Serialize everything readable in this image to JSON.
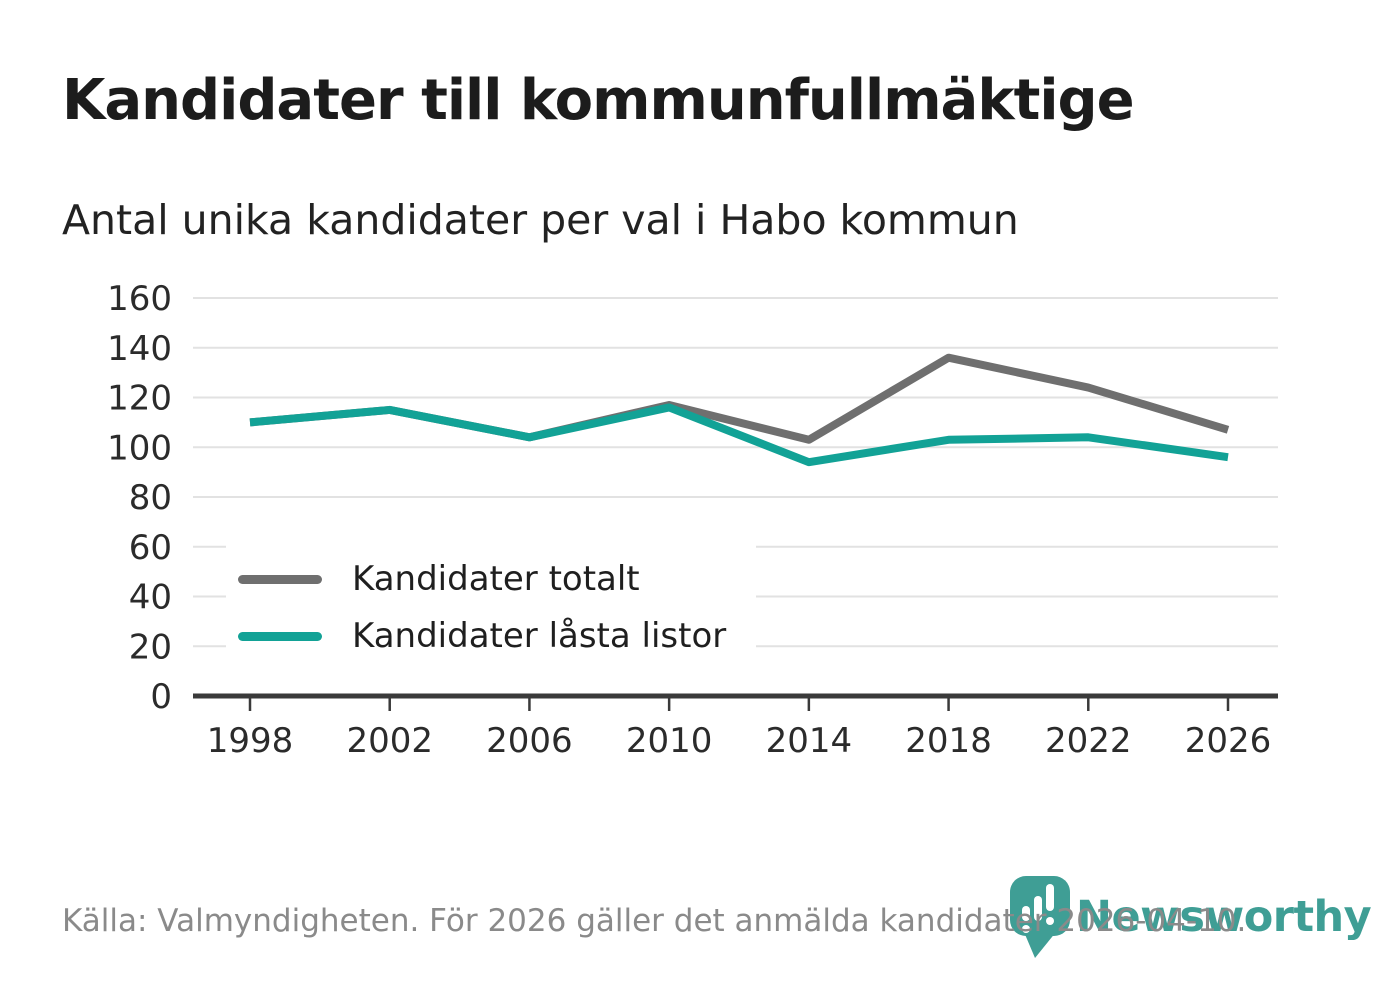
{
  "title": "Kandidater till kommunfullmäktige",
  "subtitle": "Antal unika kandidater per val i Habo kommun",
  "footer": {
    "source": "Källa: Valmyndigheten. För 2026 gäller det anmälda kandidater 2026-04-10.",
    "brand": "Newsworthy"
  },
  "colors": {
    "line_gray": "#6f6f6f",
    "line_teal": "#12a296",
    "logo_teal": "#3f9e95",
    "axis": "#3a3a3a",
    "grid": "#e2e2e2",
    "tick_label": "#2b2b2b"
  },
  "chart_data": {
    "type": "line",
    "title": "Kandidater till kommunfullmäktige",
    "subtitle": "Antal unika kandidater per val i Habo kommun",
    "categories": [
      "1998",
      "2002",
      "2006",
      "2010",
      "2014",
      "2018",
      "2022",
      "2026"
    ],
    "series": [
      {
        "name": "Kandidater totalt",
        "color": "#6f6f6f",
        "values": [
          110,
          115,
          104,
          117,
          103,
          136,
          124,
          107
        ]
      },
      {
        "name": "Kandidater låsta listor",
        "color": "#12a296",
        "values": [
          110,
          115,
          104,
          116,
          94,
          103,
          104,
          96
        ]
      }
    ],
    "xlabel": "",
    "ylabel": "",
    "ylim": [
      0,
      160
    ],
    "ytick_step": 20,
    "grid": "horizontal",
    "legend_position": "inside-bottom-left"
  }
}
